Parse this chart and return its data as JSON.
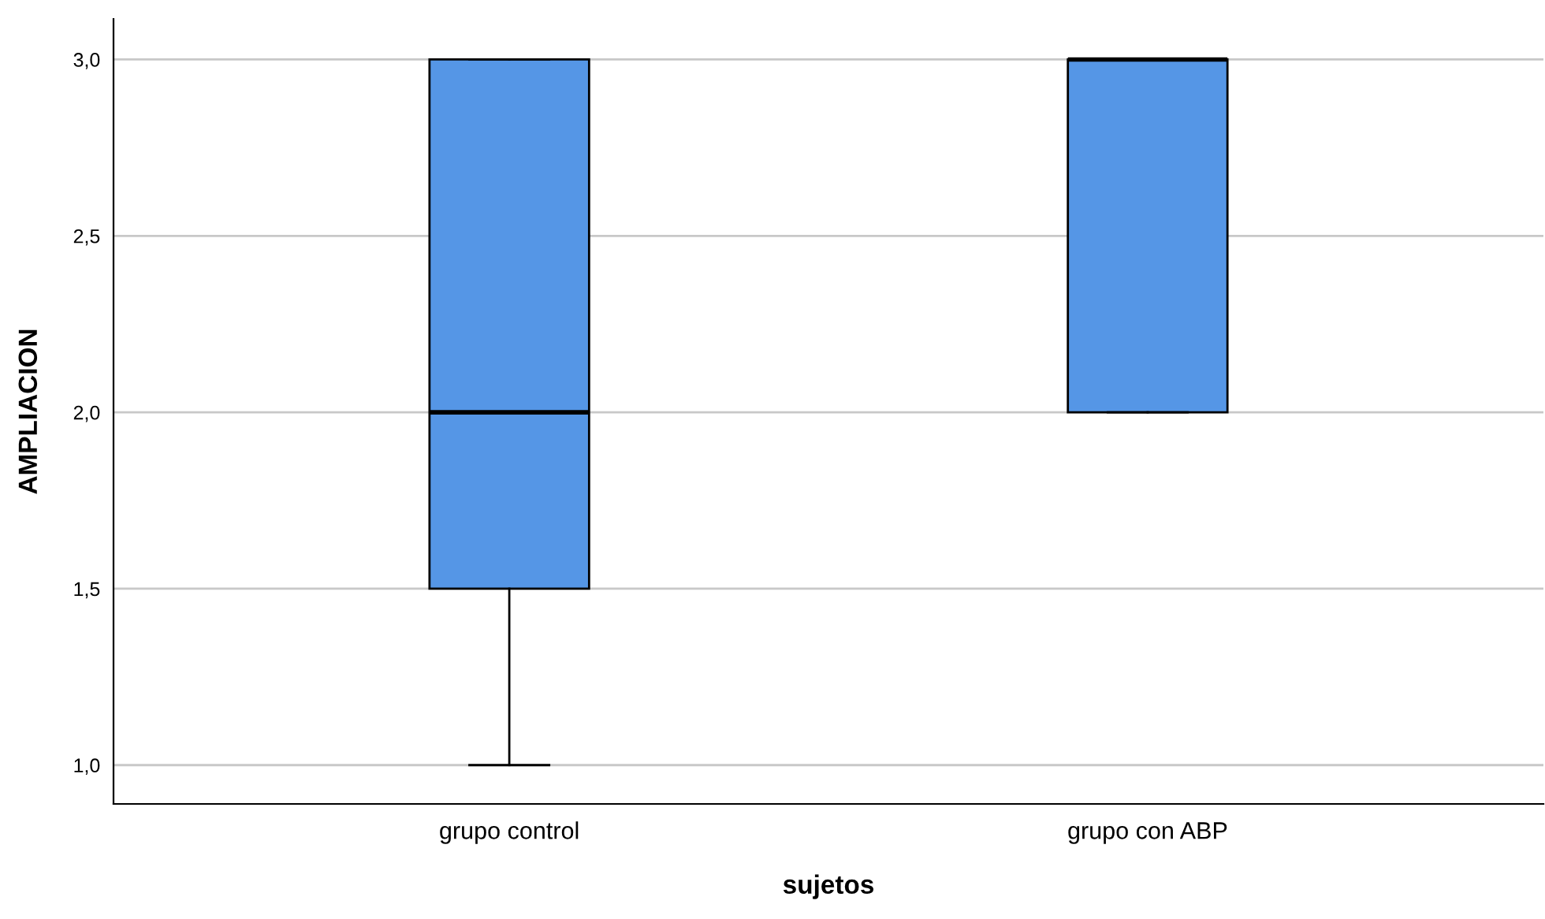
{
  "chart_data": {
    "type": "box",
    "xlabel": "sujetos",
    "ylabel": "AMPLIACION",
    "categories": [
      "grupo control",
      "grupo con ABP"
    ],
    "boxes": [
      {
        "low": 1.0,
        "q1": 1.5,
        "median": 2.0,
        "q3": 3.0,
        "high": 3.0
      },
      {
        "low": 2.0,
        "q1": 2.0,
        "median": 3.0,
        "q3": 3.0,
        "high": 3.0
      }
    ],
    "color": "#5596e6",
    "ylim": [
      0.89,
      3.115
    ],
    "yticks": [
      {
        "value": 1.0,
        "label": "1,0"
      },
      {
        "value": 1.5,
        "label": "1,5"
      },
      {
        "value": 2.0,
        "label": "2,0"
      },
      {
        "value": 2.5,
        "label": "2,5"
      },
      {
        "value": 3.0,
        "label": "3,0"
      }
    ],
    "grid": "y"
  }
}
